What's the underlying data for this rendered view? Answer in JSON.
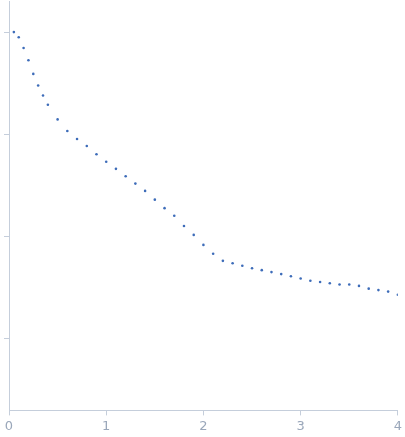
{
  "chart_data": {
    "type": "scatter",
    "color": "#3d6cb9",
    "log": "y",
    "grid": false,
    "tick_labels": "x",
    "marker": "circle",
    "x": [
      0.05,
      0.1,
      0.15,
      0.2,
      0.25,
      0.3,
      0.35,
      0.4,
      0.5,
      0.6,
      0.7,
      0.8,
      0.9,
      1.0,
      1.1,
      1.2,
      1.3,
      1.4,
      1.5,
      1.6,
      1.7,
      1.8,
      1.9,
      2.0,
      2.1,
      2.2,
      2.3,
      2.4,
      2.5,
      2.6,
      2.7,
      2.8,
      2.9,
      3.0,
      3.1,
      3.2,
      3.3,
      3.4,
      3.5,
      3.6,
      3.7,
      3.8,
      3.9,
      4.0
    ],
    "values": [
      1.0,
      0.89,
      0.7,
      0.53,
      0.39,
      0.3,
      0.24,
      0.195,
      0.14,
      0.108,
      0.09,
      0.077,
      0.064,
      0.054,
      0.046,
      0.039,
      0.033,
      0.028,
      0.023,
      0.019,
      0.016,
      0.0127,
      0.0104,
      0.0083,
      0.0068,
      0.0058,
      0.0055,
      0.0052,
      0.0049,
      0.0047,
      0.0045,
      0.0043,
      0.0041,
      0.0039,
      0.0037,
      0.0036,
      0.0035,
      0.0034,
      0.0034,
      0.0033,
      0.0031,
      0.003,
      0.0029,
      0.0027
    ],
    "xlim": [
      0,
      4
    ],
    "xticks": [
      0,
      1,
      2,
      3,
      4
    ],
    "ylim": [
      0.0002,
      2
    ],
    "yticks": [
      0.001,
      0.01,
      0.1,
      1
    ]
  }
}
